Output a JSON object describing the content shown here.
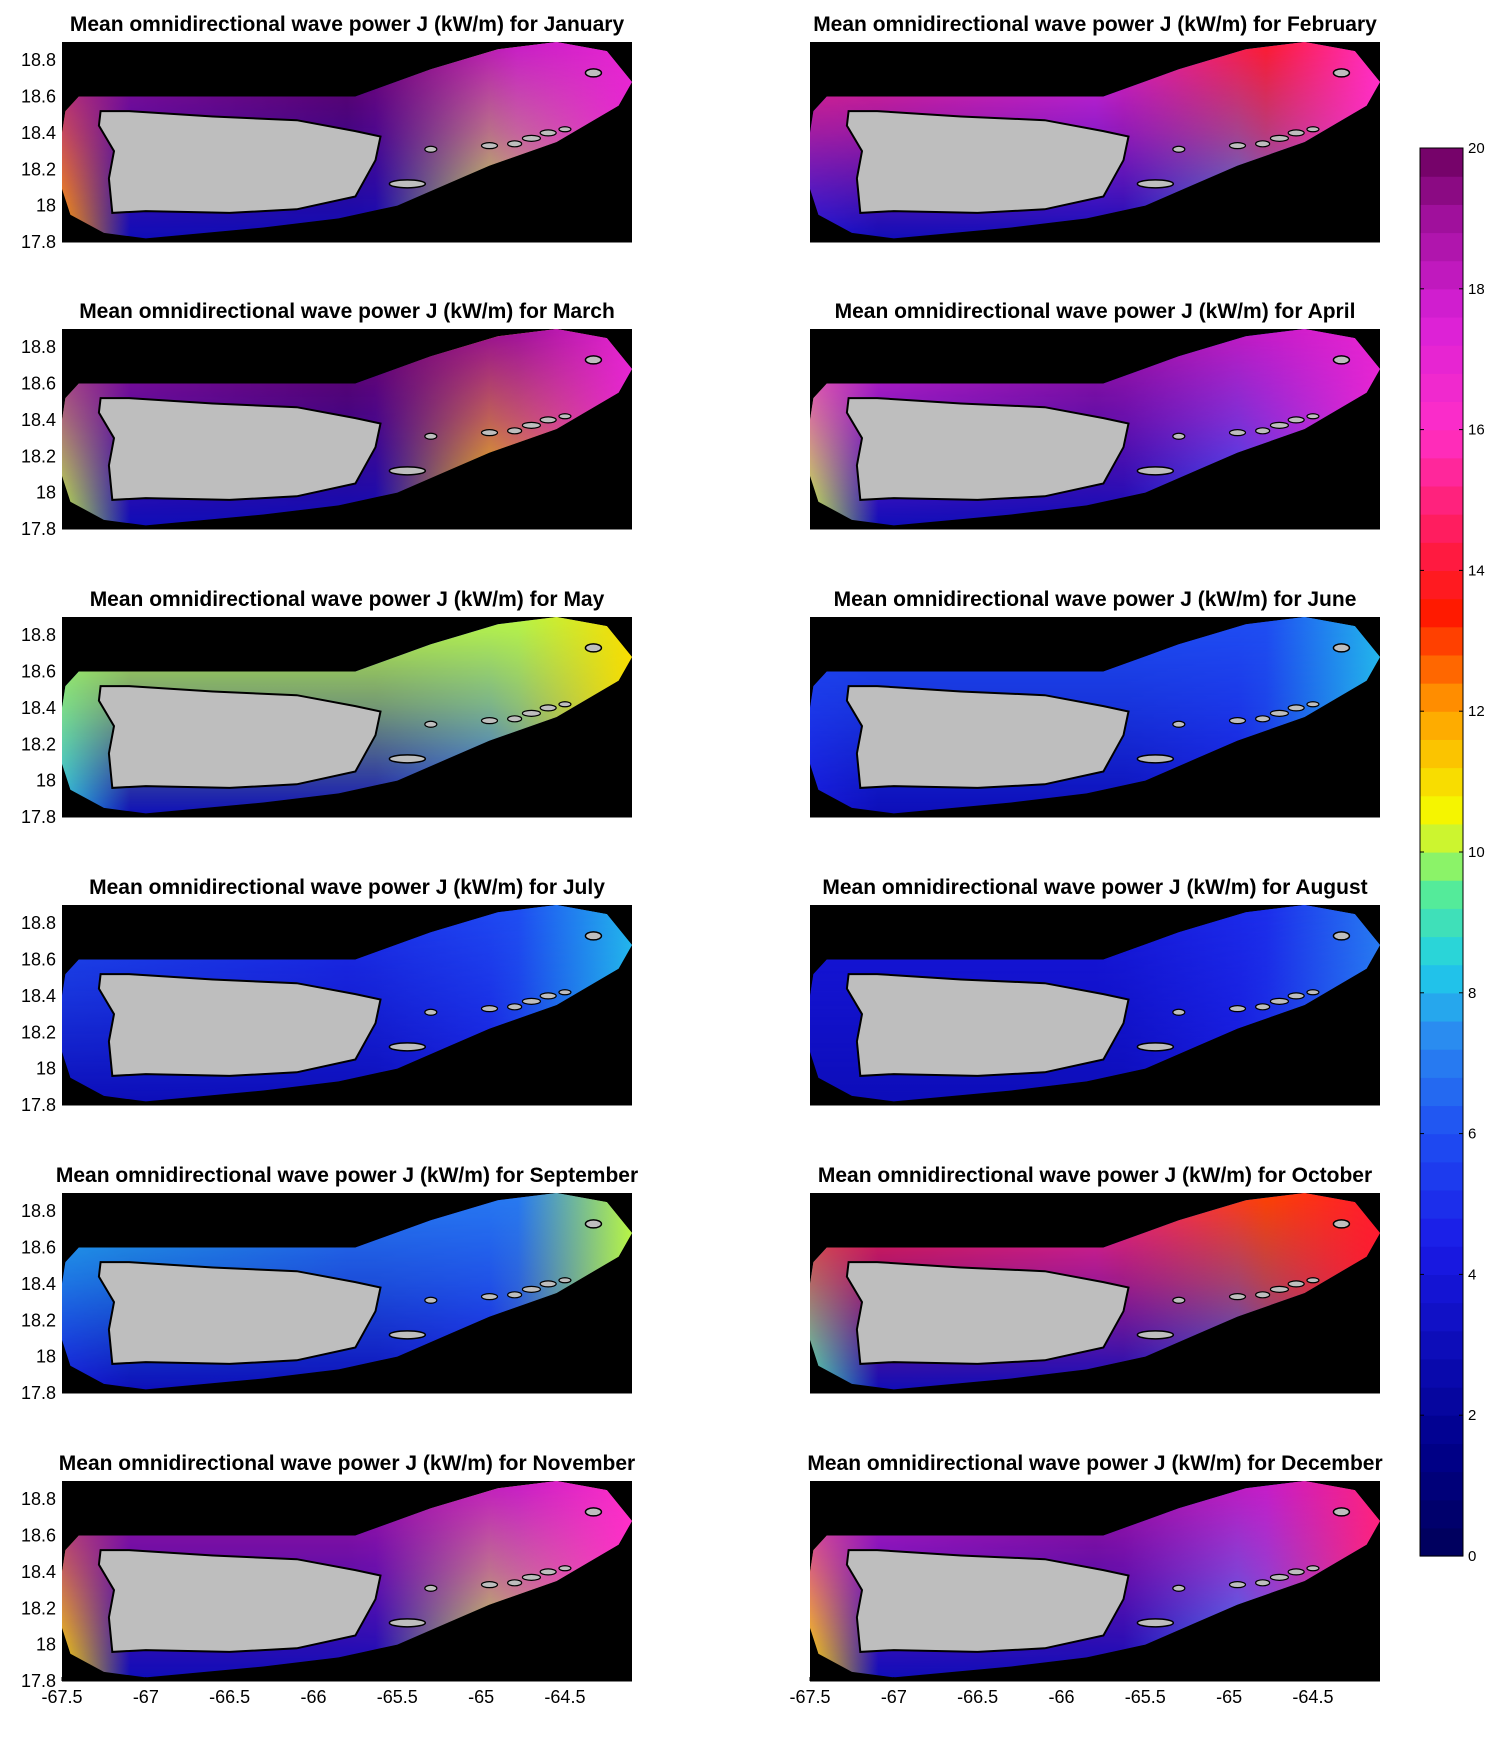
{
  "title_prefix": "Mean omnidirectional wave power J (kW/m) for",
  "colors": {
    "background": "#ffffff",
    "map_background": "#000000",
    "land": "#bebebe",
    "land_outline": "#000000"
  },
  "chart_data": [
    {
      "type": "heatmap",
      "title": "Mean omnidirectional wave power J (kW/m) for January",
      "month": "January",
      "xlim": [
        -67.5,
        -64.1
      ],
      "ylim": [
        17.8,
        18.9
      ],
      "xticks": [
        "-67.5",
        "-67",
        "-66.5",
        "-66",
        "-65.5",
        "-65",
        "-64.5"
      ],
      "yticks": [
        "18.8",
        "18.6",
        "18.4",
        "18.2",
        "18",
        "17.8"
      ],
      "x_tick_labels_shown": false,
      "regions": {
        "north_coast": 20,
        "northwest": 19,
        "west": 12,
        "northeast": 18,
        "south": 3,
        "southeast": 10,
        "east_tip": 17
      }
    },
    {
      "type": "heatmap",
      "title": "Mean omnidirectional wave power J (kW/m) for February",
      "month": "February",
      "xlim": [
        -67.5,
        -64.1
      ],
      "ylim": [
        17.8,
        18.9
      ],
      "xticks": [
        "-67.5",
        "-67",
        "-66.5",
        "-66",
        "-65.5",
        "-65",
        "-64.5"
      ],
      "yticks": [
        "18.8",
        "18.6",
        "18.4",
        "18.2",
        "18",
        "17.8"
      ],
      "x_tick_labels_shown": false,
      "y_tick_labels_shown": false,
      "regions": {
        "north_coast": 17,
        "northwest": 15,
        "west": 4,
        "northeast": 14,
        "south": 3,
        "southeast": 7,
        "east_tip": 16
      }
    },
    {
      "type": "heatmap",
      "title": "Mean omnidirectional wave power J (kW/m) for March",
      "month": "March",
      "xlim": [
        -67.5,
        -64.1
      ],
      "ylim": [
        17.8,
        18.9
      ],
      "xticks": [
        "-67.5",
        "-67",
        "-66.5",
        "-66",
        "-65.5",
        "-65",
        "-64.5"
      ],
      "yticks": [
        "18.8",
        "18.6",
        "18.4",
        "18.2",
        "18",
        "17.8"
      ],
      "x_tick_labels_shown": false,
      "regions": {
        "north_coast": 20,
        "northwest": 19,
        "west": 10,
        "northeast": 19,
        "south": 3,
        "southeast": 11,
        "east_tip": 17
      }
    },
    {
      "type": "heatmap",
      "title": "Mean omnidirectional wave power J (kW/m) for April",
      "month": "April",
      "xlim": [
        -67.5,
        -64.1
      ],
      "ylim": [
        17.8,
        18.9
      ],
      "xticks": [
        "-67.5",
        "-67",
        "-66.5",
        "-66",
        "-65.5",
        "-65",
        "-64.5"
      ],
      "yticks": [
        "18.8",
        "18.6",
        "18.4",
        "18.2",
        "18",
        "17.8"
      ],
      "x_tick_labels_shown": false,
      "y_tick_labels_shown": false,
      "regions": {
        "north_coast": 19,
        "northwest": 17,
        "west": 10,
        "northeast": 18,
        "south": 3,
        "southeast": 6,
        "east_tip": 17
      }
    },
    {
      "type": "heatmap",
      "title": "Mean omnidirectional wave power J (kW/m) for May",
      "month": "May",
      "xlim": [
        -67.5,
        -64.1
      ],
      "ylim": [
        17.8,
        18.9
      ],
      "xticks": [
        "-67.5",
        "-67",
        "-66.5",
        "-66",
        "-65.5",
        "-65",
        "-64.5"
      ],
      "yticks": [
        "18.8",
        "18.6",
        "18.4",
        "18.2",
        "18",
        "17.8"
      ],
      "x_tick_labels_shown": false,
      "regions": {
        "north_coast": 10,
        "northwest": 10,
        "west": 8,
        "northeast": 10,
        "south": 3,
        "southeast": 6,
        "east_tip": 11
      }
    },
    {
      "type": "heatmap",
      "title": "Mean omnidirectional wave power J (kW/m) for June",
      "month": "June",
      "xlim": [
        -67.5,
        -64.1
      ],
      "ylim": [
        17.8,
        18.9
      ],
      "xticks": [
        "-67.5",
        "-67",
        "-66.5",
        "-66",
        "-65.5",
        "-65",
        "-64.5"
      ],
      "yticks": [
        "18.8",
        "18.6",
        "18.4",
        "18.2",
        "18",
        "17.8"
      ],
      "x_tick_labels_shown": false,
      "y_tick_labels_shown": false,
      "regions": {
        "north_coast": 6,
        "northwest": 6,
        "west": 4,
        "northeast": 6,
        "south": 3,
        "southeast": 4,
        "east_tip": 8
      }
    },
    {
      "type": "heatmap",
      "title": "Mean omnidirectional wave power J (kW/m) for July",
      "month": "July",
      "xlim": [
        -67.5,
        -64.1
      ],
      "ylim": [
        17.8,
        18.9
      ],
      "xticks": [
        "-67.5",
        "-67",
        "-66.5",
        "-66",
        "-65.5",
        "-65",
        "-64.5"
      ],
      "yticks": [
        "18.8",
        "18.6",
        "18.4",
        "18.2",
        "18",
        "17.8"
      ],
      "x_tick_labels_shown": false,
      "regions": {
        "north_coast": 5,
        "northwest": 6,
        "west": 3,
        "northeast": 6,
        "south": 3,
        "southeast": 4,
        "east_tip": 8
      }
    },
    {
      "type": "heatmap",
      "title": "Mean omnidirectional wave power J (kW/m) for August",
      "month": "August",
      "xlim": [
        -67.5,
        -64.1
      ],
      "ylim": [
        17.8,
        18.9
      ],
      "xticks": [
        "-67.5",
        "-67",
        "-66.5",
        "-66",
        "-65.5",
        "-65",
        "-64.5"
      ],
      "yticks": [
        "18.8",
        "18.6",
        "18.4",
        "18.2",
        "18",
        "17.8"
      ],
      "x_tick_labels_shown": false,
      "y_tick_labels_shown": false,
      "regions": {
        "north_coast": 4,
        "northwest": 4,
        "west": 3,
        "northeast": 5,
        "south": 3,
        "southeast": 4,
        "east_tip": 7
      }
    },
    {
      "type": "heatmap",
      "title": "Mean omnidirectional wave power J (kW/m) for September",
      "month": "September",
      "xlim": [
        -67.5,
        -64.1
      ],
      "ylim": [
        17.8,
        18.9
      ],
      "xticks": [
        "-67.5",
        "-67",
        "-66.5",
        "-66",
        "-65.5",
        "-65",
        "-64.5"
      ],
      "yticks": [
        "18.8",
        "18.6",
        "18.4",
        "18.2",
        "18",
        "17.8"
      ],
      "x_tick_labels_shown": false,
      "regions": {
        "north_coast": 7,
        "northwest": 8,
        "west": 4,
        "northeast": 7,
        "south": 3,
        "southeast": 4,
        "east_tip": 10
      }
    },
    {
      "type": "heatmap",
      "title": "Mean omnidirectional wave power J (kW/m) for October",
      "month": "October",
      "xlim": [
        -67.5,
        -64.1
      ],
      "ylim": [
        17.8,
        18.9
      ],
      "xticks": [
        "-67.5",
        "-67",
        "-66.5",
        "-66",
        "-65.5",
        "-65",
        "-64.5"
      ],
      "yticks": [
        "18.8",
        "18.6",
        "18.4",
        "18.2",
        "18",
        "17.8"
      ],
      "x_tick_labels_shown": false,
      "y_tick_labels_shown": false,
      "regions": {
        "north_coast": 15,
        "northwest": 14,
        "west": 9,
        "northeast": 13,
        "south": 3,
        "southeast": 6,
        "east_tip": 14
      }
    },
    {
      "type": "heatmap",
      "title": "Mean omnidirectional wave power J (kW/m) for November",
      "month": "November",
      "xlim": [
        -67.5,
        -64.1
      ],
      "ylim": [
        17.8,
        18.9
      ],
      "xticks": [
        "-67.5",
        "-67",
        "-66.5",
        "-66",
        "-65.5",
        "-65",
        "-64.5"
      ],
      "yticks": [
        "18.8",
        "18.6",
        "18.4",
        "18.2",
        "18",
        "17.8"
      ],
      "x_tick_labels_shown": true,
      "regions": {
        "north_coast": 19,
        "northwest": 19,
        "west": 11,
        "northeast": 18,
        "south": 3,
        "southeast": 10,
        "east_tip": 16
      }
    },
    {
      "type": "heatmap",
      "title": "Mean omnidirectional wave power J (kW/m) for December",
      "month": "December",
      "xlim": [
        -67.5,
        -64.1
      ],
      "ylim": [
        17.8,
        18.9
      ],
      "xticks": [
        "-67.5",
        "-67",
        "-66.5",
        "-66",
        "-65.5",
        "-65",
        "-64.5"
      ],
      "yticks": [
        "18.8",
        "18.6",
        "18.4",
        "18.2",
        "18",
        "17.8"
      ],
      "x_tick_labels_shown": true,
      "y_tick_labels_shown": false,
      "regions": {
        "north_coast": 19,
        "northwest": 18,
        "west": 11,
        "northeast": 18,
        "south": 3,
        "southeast": 7,
        "east_tip": 15
      }
    }
  ],
  "colorbar": {
    "min": 0,
    "max": 20,
    "levels": 50,
    "ticks": [
      "0",
      "2",
      "4",
      "6",
      "8",
      "10",
      "12",
      "14",
      "16",
      "18",
      "20"
    ],
    "colormap": [
      [
        0.0,
        "#000059"
      ],
      [
        0.08,
        "#00008c"
      ],
      [
        0.22,
        "#1a1ae6"
      ],
      [
        0.3,
        "#1f4ef2"
      ],
      [
        0.37,
        "#2a8cf0"
      ],
      [
        0.42,
        "#1fd0e8"
      ],
      [
        0.48,
        "#5ef08a"
      ],
      [
        0.5,
        "#b8f546"
      ],
      [
        0.53,
        "#f5f500"
      ],
      [
        0.6,
        "#ffa000"
      ],
      [
        0.67,
        "#ff1a00"
      ],
      [
        0.72,
        "#ff1a50"
      ],
      [
        0.8,
        "#ff2ec8"
      ],
      [
        0.88,
        "#d820d8"
      ],
      [
        0.95,
        "#a0109c"
      ],
      [
        1.0,
        "#6b005e"
      ]
    ]
  }
}
